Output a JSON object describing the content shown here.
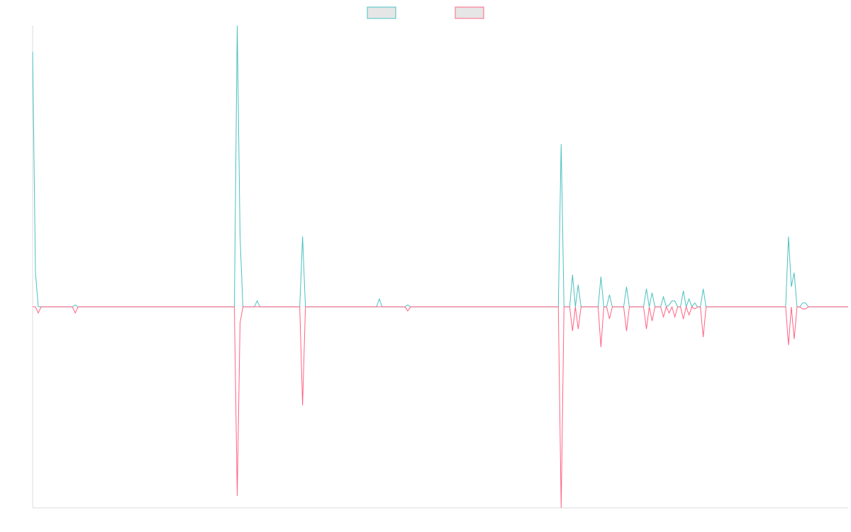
{
  "chart_data": {
    "type": "line",
    "title": "",
    "xlabel": "",
    "ylabel": "",
    "legend_position": "top-center",
    "grid": false,
    "x": [
      0,
      1,
      2,
      3,
      4,
      5,
      6,
      7,
      8,
      9,
      10,
      11,
      12,
      13,
      14,
      15,
      16,
      17,
      18,
      19,
      20,
      21,
      22,
      23,
      24,
      25,
      26,
      27,
      28,
      29,
      30,
      31,
      32,
      33,
      34,
      35,
      36,
      37,
      38,
      39,
      40,
      41,
      42,
      43,
      44,
      45,
      46,
      47,
      48,
      49,
      50,
      51,
      52,
      53,
      54,
      55,
      56,
      57,
      58,
      59,
      60,
      61,
      62,
      63,
      64,
      65,
      66,
      67,
      68,
      69,
      70,
      71,
      72,
      73,
      74,
      75,
      76,
      77,
      78,
      79,
      80,
      81,
      82,
      83,
      84,
      85,
      86,
      87,
      88,
      89,
      90,
      91,
      92,
      93,
      94,
      95,
      96,
      97,
      98,
      99,
      100,
      101,
      102,
      103,
      104,
      105,
      106,
      107,
      108,
      109,
      110,
      111,
      112,
      113,
      114,
      115,
      116,
      117,
      118,
      119,
      120,
      121,
      122,
      123,
      124,
      125,
      126,
      127,
      128,
      129,
      130,
      131,
      132,
      133,
      134,
      135,
      136,
      137,
      138,
      139,
      140,
      141,
      142,
      143,
      144,
      145,
      146,
      147,
      148,
      149,
      150,
      151,
      152,
      153,
      154,
      155,
      156,
      157,
      158,
      159,
      160,
      161,
      162,
      163,
      164,
      165,
      166,
      167,
      168,
      169,
      170,
      171,
      172,
      173,
      174,
      175,
      176,
      177,
      178,
      179,
      180,
      181,
      182,
      183,
      184,
      185,
      186,
      187,
      188,
      189,
      190,
      191,
      192,
      193,
      194,
      195,
      196,
      197,
      198,
      199,
      200,
      201,
      202,
      203,
      204,
      205,
      206,
      207,
      208,
      209,
      210,
      211,
      212,
      213,
      214,
      215,
      216,
      217,
      218,
      219,
      220,
      221,
      222,
      223,
      224,
      225,
      226,
      227,
      228,
      229,
      230,
      231,
      232,
      233,
      234,
      235,
      236,
      237,
      238,
      239,
      240,
      241,
      242,
      243,
      244,
      245,
      246,
      247,
      248,
      249,
      250,
      251,
      252,
      253,
      254,
      255,
      256,
      257,
      258,
      259,
      260,
      261,
      262,
      263,
      264,
      265,
      266,
      267,
      268,
      269,
      270,
      271,
      272,
      273,
      274,
      275,
      276,
      277,
      278,
      279,
      280,
      281,
      282,
      283,
      284,
      285,
      286,
      287
    ],
    "ylim": [
      -100,
      140
    ],
    "series": [
      {
        "color": "#4bc0c0",
        "legend_fill": "#e6e6e6",
        "values": [
          127,
          17,
          0,
          0,
          0,
          0,
          0,
          0,
          0,
          0,
          0,
          0,
          0,
          0,
          0,
          1,
          0,
          0,
          0,
          0,
          0,
          0,
          0,
          0,
          0,
          0,
          0,
          0,
          0,
          0,
          0,
          0,
          0,
          0,
          0,
          0,
          0,
          0,
          0,
          0,
          0,
          0,
          0,
          0,
          0,
          0,
          0,
          0,
          0,
          0,
          0,
          0,
          0,
          0,
          0,
          0,
          0,
          0,
          0,
          0,
          0,
          0,
          0,
          0,
          0,
          0,
          0,
          0,
          0,
          0,
          0,
          0,
          140,
          35,
          0,
          0,
          0,
          0,
          0,
          3,
          0,
          0,
          0,
          0,
          0,
          0,
          0,
          0,
          0,
          0,
          0,
          0,
          0,
          0,
          0,
          35,
          0,
          0,
          0,
          0,
          0,
          0,
          0,
          0,
          0,
          0,
          0,
          0,
          0,
          0,
          0,
          0,
          0,
          0,
          0,
          0,
          0,
          0,
          0,
          0,
          0,
          0,
          4,
          0,
          0,
          0,
          0,
          0,
          0,
          0,
          0,
          0,
          1,
          0,
          0,
          0,
          0,
          0,
          0,
          0,
          0,
          0,
          0,
          0,
          0,
          0,
          0,
          0,
          0,
          0,
          0,
          0,
          0,
          0,
          0,
          0,
          0,
          0,
          0,
          0,
          0,
          0,
          0,
          0,
          0,
          0,
          0,
          0,
          0,
          0,
          0,
          0,
          0,
          0,
          0,
          0,
          0,
          0,
          0,
          0,
          0,
          0,
          0,
          0,
          0,
          0,
          81,
          0,
          0,
          0,
          16,
          0,
          11,
          0,
          0,
          0,
          0,
          0,
          0,
          0,
          15,
          0,
          0,
          6,
          0,
          0,
          0,
          0,
          0,
          10,
          0,
          0,
          0,
          0,
          0,
          0,
          9,
          0,
          7,
          0,
          0,
          0,
          5,
          0,
          1,
          3,
          3,
          0,
          0,
          8,
          0,
          4,
          0,
          2,
          0,
          0,
          9,
          0,
          0,
          0,
          0,
          0,
          0,
          0,
          0,
          0,
          0,
          0,
          0,
          0,
          0,
          0,
          0,
          0,
          0,
          0,
          0,
          0,
          0,
          0,
          0,
          0,
          0,
          0,
          0,
          0,
          35,
          10,
          17,
          0,
          0,
          2,
          2,
          0,
          0,
          0,
          0,
          0,
          0,
          0,
          0,
          0,
          0,
          0,
          0,
          0,
          0,
          0
        ]
      },
      {
        "color": "#ff6384",
        "legend_fill": "#e6e6e6",
        "values": [
          0,
          0,
          -3,
          0,
          0,
          0,
          0,
          0,
          0,
          0,
          0,
          0,
          0,
          0,
          0,
          -3,
          0,
          0,
          0,
          0,
          0,
          0,
          0,
          0,
          0,
          0,
          0,
          0,
          0,
          0,
          0,
          0,
          0,
          0,
          0,
          0,
          0,
          0,
          0,
          0,
          0,
          0,
          0,
          0,
          0,
          0,
          0,
          0,
          0,
          0,
          0,
          0,
          0,
          0,
          0,
          0,
          0,
          0,
          0,
          0,
          0,
          0,
          0,
          0,
          0,
          0,
          0,
          0,
          0,
          0,
          0,
          0,
          -94,
          -8,
          0,
          0,
          0,
          0,
          0,
          0,
          0,
          0,
          0,
          0,
          0,
          0,
          0,
          0,
          0,
          0,
          0,
          0,
          0,
          0,
          0,
          -49,
          0,
          0,
          0,
          0,
          0,
          0,
          0,
          0,
          0,
          0,
          0,
          0,
          0,
          0,
          0,
          0,
          0,
          0,
          0,
          0,
          0,
          0,
          0,
          0,
          0,
          0,
          0,
          0,
          0,
          0,
          0,
          0,
          0,
          0,
          0,
          0,
          -2,
          0,
          0,
          0,
          0,
          0,
          0,
          0,
          0,
          0,
          0,
          0,
          0,
          0,
          0,
          0,
          0,
          0,
          0,
          0,
          0,
          0,
          0,
          0,
          0,
          0,
          0,
          0,
          0,
          0,
          0,
          0,
          0,
          0,
          0,
          0,
          0,
          0,
          0,
          0,
          0,
          0,
          0,
          0,
          0,
          0,
          0,
          0,
          0,
          0,
          0,
          0,
          0,
          0,
          -100,
          0,
          0,
          0,
          -12,
          0,
          -11,
          0,
          0,
          0,
          0,
          0,
          0,
          0,
          -20,
          0,
          0,
          -6,
          0,
          0,
          0,
          0,
          0,
          -12,
          0,
          0,
          0,
          0,
          0,
          0,
          -11,
          0,
          -7,
          0,
          0,
          0,
          -5,
          0,
          -3,
          0,
          -5,
          0,
          0,
          -6,
          0,
          -4,
          0,
          -1,
          0,
          0,
          -15,
          0,
          0,
          0,
          0,
          0,
          0,
          0,
          0,
          0,
          0,
          0,
          0,
          0,
          0,
          0,
          0,
          0,
          0,
          0,
          0,
          0,
          0,
          0,
          0,
          0,
          0,
          0,
          0,
          0,
          -19,
          0,
          -16,
          0,
          0,
          -1,
          -1,
          0,
          0,
          0,
          0,
          0,
          0,
          0,
          0,
          0,
          0,
          0,
          0,
          0,
          0,
          0
        ]
      }
    ]
  }
}
